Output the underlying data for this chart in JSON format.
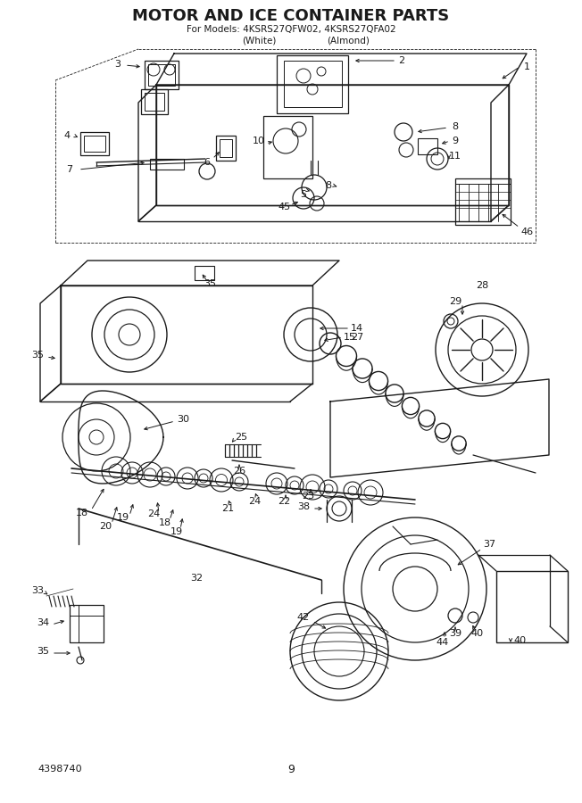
{
  "title": "MOTOR AND ICE CONTAINER PARTS",
  "subtitle": "For Models: 4KSRS27QFW02, 4KSRS27QFA02",
  "subtitle2_left": "(White)",
  "subtitle2_right": "(Almond)",
  "part_number": "4398740",
  "page_number": "9",
  "bg_color": "#ffffff",
  "line_color": "#1a1a1a",
  "text_color": "#1a1a1a",
  "title_fontsize": 13,
  "subtitle_fontsize": 7.5,
  "label_fontsize": 8
}
